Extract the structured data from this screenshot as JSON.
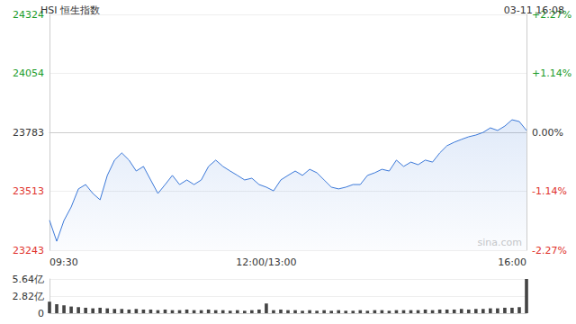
{
  "chart_data": [
    {
      "type": "line",
      "title": "HSI 恒生指数",
      "subtitle": "03-11 16:08",
      "annotations": [
        "sina.com"
      ],
      "categories": [
        "09:30",
        null,
        null,
        null,
        null,
        null,
        null,
        null,
        null,
        null,
        null,
        null,
        null,
        null,
        null,
        null,
        null,
        null,
        null,
        null,
        null,
        null,
        null,
        null,
        null,
        null,
        null,
        null,
        null,
        null,
        "12:00/13:00",
        null,
        null,
        null,
        null,
        null,
        null,
        null,
        null,
        null,
        null,
        null,
        null,
        null,
        null,
        null,
        null,
        null,
        null,
        null,
        null,
        null,
        null,
        null,
        null,
        null,
        null,
        null,
        null,
        null,
        null,
        null,
        null,
        null,
        null,
        null,
        "16:00"
      ],
      "values": [
        23380,
        23284,
        23379,
        23441,
        23524,
        23544,
        23503,
        23474,
        23586,
        23656,
        23689,
        23656,
        23606,
        23627,
        23565,
        23503,
        23544,
        23586,
        23544,
        23565,
        23544,
        23565,
        23627,
        23656,
        23627,
        23606,
        23586,
        23565,
        23573,
        23544,
        23532,
        23515,
        23565,
        23586,
        23606,
        23586,
        23614,
        23598,
        23565,
        23532,
        23524,
        23532,
        23544,
        23544,
        23586,
        23598,
        23614,
        23606,
        23656,
        23627,
        23647,
        23635,
        23656,
        23647,
        23689,
        23722,
        23738,
        23751,
        23763,
        23771,
        23783,
        23804,
        23792,
        23812,
        23841,
        23833,
        23792
      ],
      "color": "#3b78d8",
      "ylim": [
        23243,
        24324
      ],
      "yticks": [
        23243,
        23513,
        23783,
        24054,
        24324
      ],
      "y2lim": [
        -2.27,
        2.27
      ],
      "y2ticks": [
        {
          "value": -2.27,
          "label": "-2.27%"
        },
        {
          "value": -1.14,
          "label": "-1.14%"
        },
        {
          "value": 0,
          "label": "0.00%"
        },
        {
          "value": 1.14,
          "label": "+1.14%"
        },
        {
          "value": 2.27,
          "label": "+2.27%"
        }
      ],
      "grid": true
    },
    {
      "type": "bar",
      "categories": [
        "09:30",
        null,
        null,
        null,
        null,
        null,
        null,
        null,
        null,
        null,
        null,
        null,
        null,
        null,
        null,
        null,
        null,
        null,
        null,
        null,
        null,
        null,
        null,
        null,
        null,
        null,
        null,
        null,
        null,
        null,
        "12:00/13:00",
        null,
        null,
        null,
        null,
        null,
        null,
        null,
        null,
        null,
        null,
        null,
        null,
        null,
        null,
        null,
        null,
        null,
        null,
        null,
        null,
        null,
        null,
        null,
        null,
        null,
        null,
        null,
        null,
        null,
        null,
        null,
        null,
        null,
        null,
        null,
        "16:00"
      ],
      "values": [
        1.9,
        1.5,
        1.3,
        1.1,
        1.0,
        0.9,
        0.8,
        0.9,
        0.8,
        0.7,
        0.7,
        0.6,
        0.7,
        0.6,
        0.6,
        0.5,
        0.6,
        0.5,
        0.5,
        0.6,
        0.5,
        0.5,
        0.6,
        0.5,
        0.5,
        0.4,
        0.5,
        0.4,
        0.5,
        0.6,
        1.6,
        0.5,
        0.6,
        0.5,
        0.5,
        0.4,
        0.5,
        0.4,
        0.5,
        0.4,
        0.5,
        0.4,
        0.4,
        0.5,
        0.4,
        0.5,
        0.5,
        0.4,
        0.5,
        0.5,
        0.5,
        0.5,
        0.6,
        0.5,
        0.6,
        0.6,
        0.6,
        0.7,
        0.6,
        0.7,
        0.7,
        0.8,
        0.8,
        0.9,
        0.9,
        1.0,
        5.64
      ],
      "color": "#444444",
      "ylim": [
        0,
        5.64
      ],
      "yticks": [
        0,
        {
          "value": 2.82,
          "label": "2.82亿"
        },
        {
          "value": 5.64,
          "label": "5.64亿"
        }
      ],
      "grid": true
    }
  ]
}
